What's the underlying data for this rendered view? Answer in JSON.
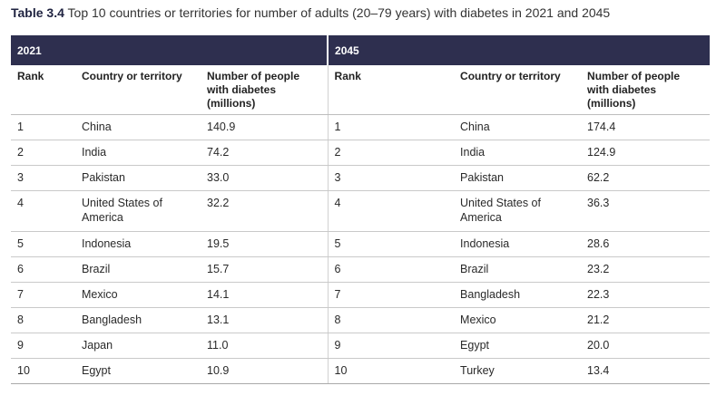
{
  "table": {
    "label": "Table 3.4",
    "caption": "Top 10 countries or territories for number of adults (20–79 years) with diabetes in 2021 and 2045",
    "year_left": "2021",
    "year_right": "2045",
    "headers": [
      "Rank",
      "Country or territory",
      "Number of people with diabetes (millions)"
    ],
    "header_colors": {
      "band": "#2e2f4f"
    },
    "rows_2021": [
      {
        "rank": "1",
        "country": "China",
        "value": "140.9"
      },
      {
        "rank": "2",
        "country": "India",
        "value": "74.2"
      },
      {
        "rank": "3",
        "country": "Pakistan",
        "value": "33.0"
      },
      {
        "rank": "4",
        "country": "United States of America",
        "value": "32.2"
      },
      {
        "rank": "5",
        "country": "Indonesia",
        "value": "19.5"
      },
      {
        "rank": "6",
        "country": "Brazil",
        "value": "15.7"
      },
      {
        "rank": "7",
        "country": "Mexico",
        "value": "14.1"
      },
      {
        "rank": "8",
        "country": "Bangladesh",
        "value": "13.1"
      },
      {
        "rank": "9",
        "country": "Japan",
        "value": "11.0"
      },
      {
        "rank": "10",
        "country": "Egypt",
        "value": "10.9"
      }
    ],
    "rows_2045": [
      {
        "rank": "1",
        "country": "China",
        "value": "174.4"
      },
      {
        "rank": "2",
        "country": "India",
        "value": "124.9"
      },
      {
        "rank": "3",
        "country": "Pakistan",
        "value": "62.2"
      },
      {
        "rank": "4",
        "country": "United States of America",
        "value": "36.3"
      },
      {
        "rank": "5",
        "country": "Indonesia",
        "value": "28.6"
      },
      {
        "rank": "6",
        "country": "Brazil",
        "value": "23.2"
      },
      {
        "rank": "7",
        "country": "Bangladesh",
        "value": "22.3"
      },
      {
        "rank": "8",
        "country": "Mexico",
        "value": "21.2"
      },
      {
        "rank": "9",
        "country": "Egypt",
        "value": "20.0"
      },
      {
        "rank": "10",
        "country": "Turkey",
        "value": "13.4"
      }
    ]
  }
}
